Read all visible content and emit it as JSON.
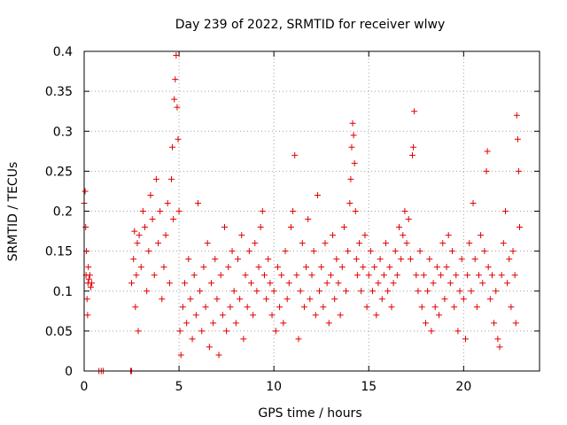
{
  "chart_data": {
    "type": "scatter",
    "title": "Day 239 of 2022, SRMTID for receiver wlwy",
    "xlabel": "GPS time / hours",
    "ylabel": "SRMTID / TECUs",
    "xlim": [
      0,
      24
    ],
    "ylim": [
      0,
      0.4
    ],
    "x_ticks": [
      0,
      5,
      10,
      15,
      20
    ],
    "x_tick_labels": [
      "0",
      "5",
      "10",
      "15",
      "20"
    ],
    "y_ticks": [
      0,
      0.05,
      0.1,
      0.15,
      0.2,
      0.25,
      0.3,
      0.35,
      0.4
    ],
    "y_tick_labels": [
      "0",
      "0.05",
      "0.1",
      "0.15",
      "0.2",
      "0.25",
      "0.3",
      "0.35",
      "0.4"
    ],
    "grid": true,
    "marker": "+",
    "color": "#e00000",
    "series": [
      {
        "name": "SRMTID",
        "points": [
          [
            0.0,
            0.21
          ],
          [
            0.05,
            0.225
          ],
          [
            0.08,
            0.18
          ],
          [
            0.1,
            0.12
          ],
          [
            0.12,
            0.15
          ],
          [
            0.15,
            0.09
          ],
          [
            0.18,
            0.07
          ],
          [
            0.2,
            0.11
          ],
          [
            0.22,
            0.13
          ],
          [
            0.25,
            0.115
          ],
          [
            0.3,
            0.12
          ],
          [
            0.35,
            0.105
          ],
          [
            0.4,
            0.11
          ],
          [
            0.78,
            0.0
          ],
          [
            0.9,
            0.0
          ],
          [
            1.0,
            0.0
          ],
          [
            2.45,
            0.0
          ],
          [
            2.5,
            0.0
          ],
          [
            2.5,
            0.11
          ],
          [
            2.6,
            0.14
          ],
          [
            2.65,
            0.175
          ],
          [
            2.7,
            0.08
          ],
          [
            2.75,
            0.12
          ],
          [
            2.8,
            0.16
          ],
          [
            2.85,
            0.05
          ],
          [
            2.9,
            0.17
          ],
          [
            3.0,
            0.13
          ],
          [
            3.1,
            0.2
          ],
          [
            3.2,
            0.18
          ],
          [
            3.3,
            0.1
          ],
          [
            3.4,
            0.15
          ],
          [
            3.5,
            0.22
          ],
          [
            3.6,
            0.19
          ],
          [
            3.7,
            0.12
          ],
          [
            3.8,
            0.24
          ],
          [
            3.9,
            0.16
          ],
          [
            4.0,
            0.2
          ],
          [
            4.1,
            0.09
          ],
          [
            4.2,
            0.13
          ],
          [
            4.3,
            0.17
          ],
          [
            4.4,
            0.21
          ],
          [
            4.5,
            0.11
          ],
          [
            4.6,
            0.24
          ],
          [
            4.65,
            0.28
          ],
          [
            4.7,
            0.19
          ],
          [
            4.75,
            0.34
          ],
          [
            4.8,
            0.365
          ],
          [
            4.85,
            0.395
          ],
          [
            4.9,
            0.33
          ],
          [
            4.95,
            0.29
          ],
          [
            5.0,
            0.2
          ],
          [
            5.05,
            0.05
          ],
          [
            5.1,
            0.02
          ],
          [
            5.2,
            0.08
          ],
          [
            5.3,
            0.11
          ],
          [
            5.4,
            0.06
          ],
          [
            5.5,
            0.14
          ],
          [
            5.6,
            0.09
          ],
          [
            5.7,
            0.04
          ],
          [
            5.8,
            0.12
          ],
          [
            5.9,
            0.07
          ],
          [
            6.0,
            0.21
          ],
          [
            6.1,
            0.1
          ],
          [
            6.2,
            0.05
          ],
          [
            6.3,
            0.13
          ],
          [
            6.4,
            0.08
          ],
          [
            6.5,
            0.16
          ],
          [
            6.6,
            0.03
          ],
          [
            6.7,
            0.11
          ],
          [
            6.8,
            0.06
          ],
          [
            6.9,
            0.14
          ],
          [
            7.0,
            0.09
          ],
          [
            7.1,
            0.02
          ],
          [
            7.2,
            0.12
          ],
          [
            7.3,
            0.07
          ],
          [
            7.4,
            0.18
          ],
          [
            7.5,
            0.05
          ],
          [
            7.6,
            0.13
          ],
          [
            7.7,
            0.08
          ],
          [
            7.8,
            0.15
          ],
          [
            7.9,
            0.1
          ],
          [
            8.0,
            0.06
          ],
          [
            8.1,
            0.14
          ],
          [
            8.2,
            0.09
          ],
          [
            8.3,
            0.17
          ],
          [
            8.4,
            0.04
          ],
          [
            8.5,
            0.12
          ],
          [
            8.6,
            0.08
          ],
          [
            8.7,
            0.15
          ],
          [
            8.8,
            0.11
          ],
          [
            8.9,
            0.07
          ],
          [
            9.0,
            0.16
          ],
          [
            9.1,
            0.1
          ],
          [
            9.2,
            0.13
          ],
          [
            9.3,
            0.18
          ],
          [
            9.4,
            0.2
          ],
          [
            9.5,
            0.12
          ],
          [
            9.6,
            0.09
          ],
          [
            9.7,
            0.14
          ],
          [
            9.8,
            0.11
          ],
          [
            9.9,
            0.07
          ],
          [
            10.0,
            0.1
          ],
          [
            10.1,
            0.05
          ],
          [
            10.2,
            0.13
          ],
          [
            10.3,
            0.08
          ],
          [
            10.4,
            0.12
          ],
          [
            10.5,
            0.06
          ],
          [
            10.6,
            0.15
          ],
          [
            10.7,
            0.09
          ],
          [
            10.8,
            0.11
          ],
          [
            10.9,
            0.18
          ],
          [
            11.0,
            0.2
          ],
          [
            11.1,
            0.27
          ],
          [
            11.2,
            0.12
          ],
          [
            11.3,
            0.04
          ],
          [
            11.4,
            0.1
          ],
          [
            11.5,
            0.16
          ],
          [
            11.6,
            0.08
          ],
          [
            11.7,
            0.13
          ],
          [
            11.8,
            0.19
          ],
          [
            11.9,
            0.09
          ],
          [
            12.0,
            0.12
          ],
          [
            12.1,
            0.15
          ],
          [
            12.2,
            0.07
          ],
          [
            12.3,
            0.22
          ],
          [
            12.4,
            0.1
          ],
          [
            12.5,
            0.13
          ],
          [
            12.6,
            0.08
          ],
          [
            12.7,
            0.16
          ],
          [
            12.8,
            0.11
          ],
          [
            12.9,
            0.06
          ],
          [
            13.0,
            0.12
          ],
          [
            13.1,
            0.17
          ],
          [
            13.2,
            0.09
          ],
          [
            13.3,
            0.14
          ],
          [
            13.4,
            0.11
          ],
          [
            13.5,
            0.07
          ],
          [
            13.6,
            0.13
          ],
          [
            13.7,
            0.18
          ],
          [
            13.8,
            0.1
          ],
          [
            13.9,
            0.15
          ],
          [
            14.0,
            0.21
          ],
          [
            14.05,
            0.24
          ],
          [
            14.1,
            0.28
          ],
          [
            14.15,
            0.31
          ],
          [
            14.2,
            0.295
          ],
          [
            14.25,
            0.26
          ],
          [
            14.3,
            0.2
          ],
          [
            14.35,
            0.14
          ],
          [
            14.4,
            0.12
          ],
          [
            14.5,
            0.16
          ],
          [
            14.6,
            0.1
          ],
          [
            14.7,
            0.13
          ],
          [
            14.8,
            0.17
          ],
          [
            14.9,
            0.08
          ],
          [
            15.0,
            0.12
          ],
          [
            15.1,
            0.15
          ],
          [
            15.2,
            0.1
          ],
          [
            15.3,
            0.13
          ],
          [
            15.4,
            0.07
          ],
          [
            15.5,
            0.11
          ],
          [
            15.6,
            0.14
          ],
          [
            15.7,
            0.09
          ],
          [
            15.8,
            0.12
          ],
          [
            15.9,
            0.16
          ],
          [
            16.0,
            0.1
          ],
          [
            16.1,
            0.13
          ],
          [
            16.2,
            0.08
          ],
          [
            16.3,
            0.11
          ],
          [
            16.4,
            0.15
          ],
          [
            16.5,
            0.12
          ],
          [
            16.6,
            0.18
          ],
          [
            16.7,
            0.14
          ],
          [
            16.8,
            0.17
          ],
          [
            16.9,
            0.2
          ],
          [
            17.0,
            0.16
          ],
          [
            17.1,
            0.19
          ],
          [
            17.2,
            0.14
          ],
          [
            17.3,
            0.27
          ],
          [
            17.35,
            0.28
          ],
          [
            17.4,
            0.325
          ],
          [
            17.5,
            0.12
          ],
          [
            17.6,
            0.1
          ],
          [
            17.7,
            0.15
          ],
          [
            17.8,
            0.08
          ],
          [
            17.9,
            0.12
          ],
          [
            18.0,
            0.06
          ],
          [
            18.1,
            0.1
          ],
          [
            18.2,
            0.14
          ],
          [
            18.3,
            0.05
          ],
          [
            18.4,
            0.11
          ],
          [
            18.5,
            0.08
          ],
          [
            18.6,
            0.13
          ],
          [
            18.7,
            0.07
          ],
          [
            18.8,
            0.12
          ],
          [
            18.9,
            0.16
          ],
          [
            19.0,
            0.09
          ],
          [
            19.1,
            0.13
          ],
          [
            19.2,
            0.17
          ],
          [
            19.3,
            0.11
          ],
          [
            19.4,
            0.15
          ],
          [
            19.5,
            0.08
          ],
          [
            19.6,
            0.12
          ],
          [
            19.7,
            0.05
          ],
          [
            19.8,
            0.1
          ],
          [
            19.9,
            0.14
          ],
          [
            20.0,
            0.09
          ],
          [
            20.1,
            0.04
          ],
          [
            20.2,
            0.12
          ],
          [
            20.3,
            0.16
          ],
          [
            20.4,
            0.1
          ],
          [
            20.5,
            0.21
          ],
          [
            20.6,
            0.14
          ],
          [
            20.7,
            0.08
          ],
          [
            20.8,
            0.12
          ],
          [
            20.9,
            0.17
          ],
          [
            21.0,
            0.11
          ],
          [
            21.1,
            0.15
          ],
          [
            21.2,
            0.25
          ],
          [
            21.25,
            0.275
          ],
          [
            21.3,
            0.13
          ],
          [
            21.4,
            0.09
          ],
          [
            21.5,
            0.12
          ],
          [
            21.6,
            0.06
          ],
          [
            21.7,
            0.1
          ],
          [
            21.8,
            0.04
          ],
          [
            21.9,
            0.03
          ],
          [
            22.0,
            0.12
          ],
          [
            22.1,
            0.16
          ],
          [
            22.2,
            0.2
          ],
          [
            22.3,
            0.11
          ],
          [
            22.4,
            0.14
          ],
          [
            22.5,
            0.08
          ],
          [
            22.6,
            0.15
          ],
          [
            22.7,
            0.12
          ],
          [
            22.75,
            0.06
          ],
          [
            22.8,
            0.32
          ],
          [
            22.85,
            0.29
          ],
          [
            22.9,
            0.25
          ],
          [
            22.95,
            0.18
          ]
        ]
      }
    ]
  }
}
